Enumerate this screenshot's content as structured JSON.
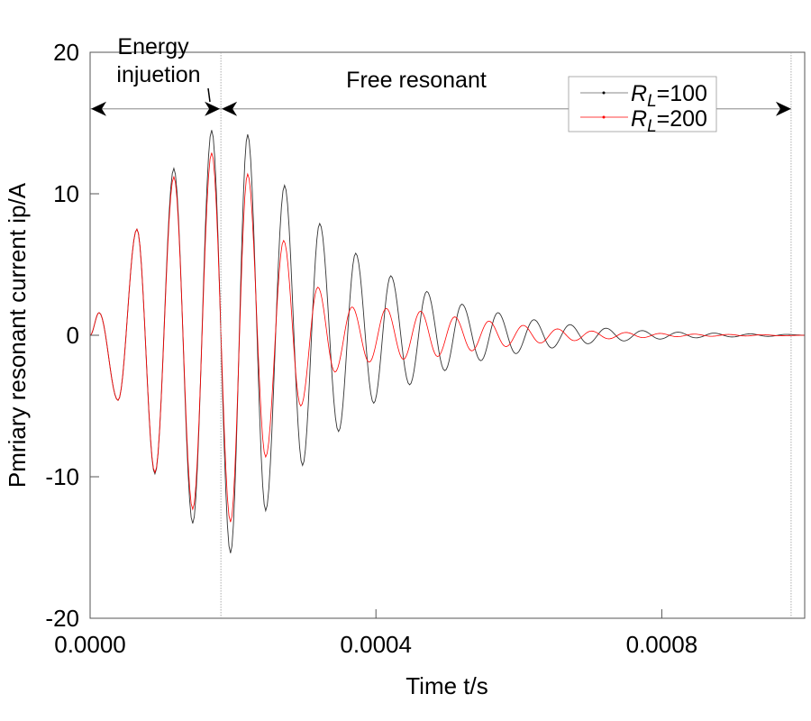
{
  "chart_data": {
    "type": "line",
    "title": "",
    "xlabel": "Time t/s",
    "ylabel": "Pmriary resonant current ip/A",
    "xlim": [
      0,
      0.001
    ],
    "ylim": [
      -20,
      20
    ],
    "xticks": [
      "0.0000",
      "0.0004",
      "0.0008"
    ],
    "xtick_values": [
      0,
      0.0004,
      0.0008
    ],
    "yticks": [
      "20",
      "10",
      "0",
      "-10",
      "-20"
    ],
    "ytick_values": [
      20,
      10,
      0,
      -10,
      -20
    ],
    "grid": false,
    "legend_placement": "top-right",
    "annotations": {
      "phase1": [
        "Energy",
        "injuetion"
      ],
      "phase2": "Free resonant",
      "arrow_level": 16,
      "boundary_times": [
        0.000183,
        0.000981
      ]
    },
    "series": [
      {
        "name": "R_L=100",
        "legend_main": "R",
        "legend_sub": "L",
        "legend_rest": "=100",
        "color": "#000000",
        "extrema": [
          [
            0,
            0
          ],
          [
            1.26e-05,
            1.6
          ],
          [
            3.91e-05,
            -4.6
          ],
          [
            6.55e-05,
            7.5
          ],
          [
            9.07e-05,
            -9.8
          ],
          [
            0.0001172,
            11.8
          ],
          [
            0.0001436,
            -13.3
          ],
          [
            0.0001701,
            14.5
          ],
          [
            0.0001965,
            -15.4
          ],
          [
            0.0002205,
            14.2
          ],
          [
            0.0002457,
            -12.4
          ],
          [
            0.0002721,
            10.6
          ],
          [
            0.0002973,
            -9.2
          ],
          [
            0.0003213,
            7.9
          ],
          [
            0.0003477,
            -6.8
          ],
          [
            0.0003717,
            5.8
          ],
          [
            0.0003969,
            -4.8
          ],
          [
            0.0004208,
            4.2
          ],
          [
            0.0004472,
            -3.5
          ],
          [
            0.0004712,
            3.1
          ],
          [
            0.0004964,
            -2.5
          ],
          [
            0.0005203,
            2.2
          ],
          [
            0.0005468,
            -1.8
          ],
          [
            0.0005707,
            1.6
          ],
          [
            0.0005959,
            -1.3
          ],
          [
            0.0006211,
            1.1
          ],
          [
            0.0006463,
            -0.9
          ],
          [
            0.0006715,
            0.75
          ],
          [
            0.0006967,
            -0.6
          ],
          [
            0.0007219,
            0.5
          ],
          [
            0.0007471,
            -0.4
          ],
          [
            0.0007723,
            0.33
          ],
          [
            0.0007975,
            -0.27
          ],
          [
            0.0008227,
            0.22
          ],
          [
            0.0008479,
            -0.18
          ],
          [
            0.0008731,
            0.15
          ],
          [
            0.0008983,
            -0.12
          ],
          [
            0.0009235,
            0.1
          ],
          [
            0.0009487,
            -0.08
          ],
          [
            0.0009739,
            0.06
          ],
          [
            0.001,
            0
          ]
        ]
      },
      {
        "name": "R_L=200",
        "legend_main": "R",
        "legend_sub": "L",
        "legend_rest": "=200",
        "color": "#ff0000",
        "extrema": [
          [
            0,
            0
          ],
          [
            1.26e-05,
            1.6
          ],
          [
            3.91e-05,
            -4.6
          ],
          [
            6.55e-05,
            7.5
          ],
          [
            9.07e-05,
            -9.7
          ],
          [
            0.0001172,
            11.2
          ],
          [
            0.0001436,
            -12.3
          ],
          [
            0.0001701,
            12.9
          ],
          [
            0.0001965,
            -13.2
          ],
          [
            0.0002205,
            11.4
          ],
          [
            0.0002457,
            -8.6
          ],
          [
            0.0002709,
            6.7
          ],
          [
            0.0002948,
            -5.0
          ],
          [
            0.0003187,
            3.4
          ],
          [
            0.0003427,
            -2.6
          ],
          [
            0.0003666,
            2.0
          ],
          [
            0.0003906,
            -1.9
          ],
          [
            0.0004145,
            1.9
          ],
          [
            0.0004384,
            -1.7
          ],
          [
            0.0004624,
            1.7
          ],
          [
            0.0004863,
            -1.5
          ],
          [
            0.0005102,
            1.3
          ],
          [
            0.0005342,
            -1.1
          ],
          [
            0.0005581,
            1.0
          ],
          [
            0.000582,
            -0.8
          ],
          [
            0.000606,
            0.7
          ],
          [
            0.0006299,
            -0.55
          ],
          [
            0.0006539,
            0.45
          ],
          [
            0.0006778,
            -0.38
          ],
          [
            0.0007017,
            0.3
          ],
          [
            0.0007257,
            -0.25
          ],
          [
            0.0007496,
            0.2
          ],
          [
            0.0007735,
            -0.16
          ],
          [
            0.0007975,
            0.13
          ],
          [
            0.0008214,
            -0.1
          ],
          [
            0.0008453,
            0.08
          ],
          [
            0.0008693,
            -0.07
          ],
          [
            0.0008932,
            0.06
          ],
          [
            0.0009171,
            -0.05
          ],
          [
            0.0009411,
            0.04
          ],
          [
            0.000965,
            -0.03
          ],
          [
            0.001,
            0
          ]
        ]
      }
    ]
  }
}
